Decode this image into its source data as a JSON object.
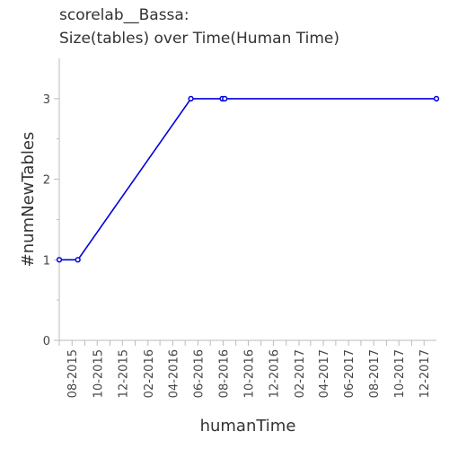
{
  "chart_data": {
    "type": "line",
    "title": "scorelab__Bassa:",
    "subtitle": "Size(tables) over Time(Human Time)",
    "xlabel": "humanTime",
    "ylabel": "#numNewTables",
    "ylim": [
      0,
      3.5
    ],
    "yticks": [
      "0",
      "1",
      "2",
      "3"
    ],
    "xlim": [
      "2015-07-01",
      "2017-12-31"
    ],
    "xticks": [
      "08-2015",
      "10-2015",
      "12-2015",
      "02-2016",
      "04-2016",
      "06-2016",
      "08-2016",
      "10-2016",
      "12-2016",
      "02-2017",
      "04-2017",
      "06-2017",
      "08-2017",
      "10-2017",
      "12-2017"
    ],
    "grid": false,
    "series": [
      {
        "color": "#0000dd",
        "points": [
          {
            "x": "2015-07-01",
            "y": 1
          },
          {
            "x": "2015-08-15",
            "y": 1
          },
          {
            "x": "2016-05-15",
            "y": 3
          },
          {
            "x": "2016-07-30",
            "y": 3
          },
          {
            "x": "2016-08-05",
            "y": 3
          },
          {
            "x": "2017-12-31",
            "y": 3
          }
        ]
      }
    ]
  }
}
